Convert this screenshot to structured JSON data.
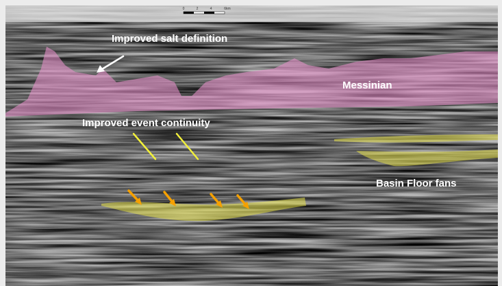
{
  "annotations": {
    "salt": "Improved salt definition",
    "messinian": "Messinian",
    "continuity": "Improved event continuity",
    "fans": "Basin Floor fans"
  },
  "scale_bar": {
    "ticks": [
      "0",
      "2",
      "4",
      "6km"
    ]
  }
}
